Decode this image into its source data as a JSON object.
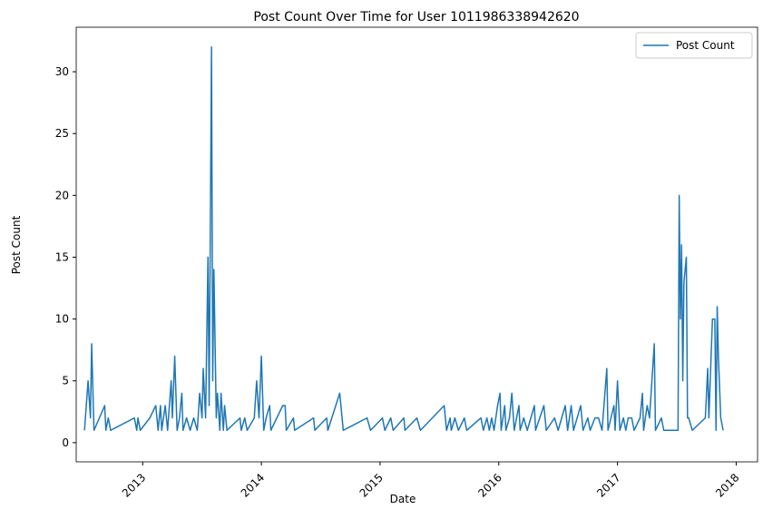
{
  "chart_data": {
    "type": "line",
    "title": "Post Count Over Time for User 1011986338942620",
    "x_label": "Date",
    "y_label": "Post Count",
    "x": [
      2012.51,
      2012.54,
      2012.56,
      2012.57,
      2012.59,
      2012.68,
      2012.69,
      2012.71,
      2012.73,
      2012.93,
      2012.95,
      2012.96,
      2012.98,
      2013.06,
      2013.11,
      2013.13,
      2013.15,
      2013.16,
      2013.19,
      2013.21,
      2013.24,
      2013.25,
      2013.27,
      2013.29,
      2013.31,
      2013.33,
      2013.34,
      2013.37,
      2013.4,
      2013.43,
      2013.46,
      2013.48,
      2013.5,
      2013.51,
      2013.53,
      2013.55,
      2013.56,
      2013.58,
      2013.59,
      2013.6,
      2013.61,
      2013.62,
      2013.63,
      2013.65,
      2013.66,
      2013.68,
      2013.69,
      2013.71,
      2013.82,
      2013.83,
      2013.86,
      2013.88,
      2013.94,
      2013.96,
      2013.98,
      2014.0,
      2014.02,
      2014.04,
      2014.07,
      2014.08,
      2014.18,
      2014.2,
      2014.21,
      2014.27,
      2014.28,
      2014.44,
      2014.45,
      2014.55,
      2014.56,
      2014.66,
      2014.69,
      2014.89,
      2014.92,
      2015.02,
      2015.04,
      2015.09,
      2015.11,
      2015.2,
      2015.21,
      2015.31,
      2015.34,
      2015.54,
      2015.56,
      2015.59,
      2015.6,
      2015.63,
      2015.66,
      2015.71,
      2015.73,
      2015.85,
      2015.87,
      2015.9,
      2015.92,
      2015.94,
      2015.96,
      2015.99,
      2016.01,
      2016.02,
      2016.05,
      2016.06,
      2016.09,
      2016.11,
      2016.13,
      2016.17,
      2016.18,
      2016.21,
      2016.24,
      2016.3,
      2016.31,
      2016.38,
      2016.4,
      2016.47,
      2016.5,
      2016.53,
      2016.56,
      2016.58,
      2016.61,
      2016.63,
      2016.69,
      2016.71,
      2016.75,
      2016.77,
      2016.81,
      2016.84,
      2016.87,
      2016.91,
      2016.92,
      2016.97,
      2016.98,
      2017.0,
      2017.02,
      2017.05,
      2017.07,
      2017.09,
      2017.12,
      2017.14,
      2017.19,
      2017.21,
      2017.22,
      2017.25,
      2017.27,
      2017.31,
      2017.32,
      2017.37,
      2017.39,
      2017.51,
      2017.52,
      2017.53,
      2017.54,
      2017.55,
      2017.56,
      2017.58,
      2017.59,
      2017.6,
      2017.63,
      2017.74,
      2017.76,
      2017.77,
      2017.8,
      2017.82,
      2017.83,
      2017.84,
      2017.85,
      2017.87,
      2017.89
    ],
    "series": [
      {
        "name": "Post Count",
        "color": "#1f77b4",
        "values": [
          1,
          5,
          2,
          8,
          1,
          3,
          1,
          2,
          1,
          2,
          1,
          2,
          1,
          2,
          3,
          1,
          3,
          1,
          3,
          1,
          5,
          2,
          7,
          1,
          2,
          4,
          1,
          2,
          1,
          2,
          1,
          4,
          2,
          6,
          2,
          15,
          3,
          32,
          5,
          14,
          8,
          2,
          4,
          1,
          4,
          1,
          3,
          1,
          2,
          1,
          2,
          1,
          2,
          5,
          2,
          7,
          1,
          2,
          3,
          1,
          3,
          3,
          1,
          2,
          1,
          2,
          1,
          2,
          1,
          4,
          1,
          2,
          1,
          2,
          1,
          2,
          1,
          2,
          1,
          2,
          1,
          3,
          1,
          2,
          1,
          2,
          1,
          2,
          1,
          2,
          1,
          2,
          1,
          2,
          1,
          3,
          4,
          1,
          3,
          1,
          2,
          4,
          1,
          3,
          1,
          2,
          1,
          3,
          1,
          3,
          1,
          2,
          1,
          2,
          3,
          1,
          3,
          1,
          3,
          1,
          2,
          1,
          2,
          2,
          1,
          6,
          1,
          3,
          1,
          5,
          1,
          2,
          1,
          2,
          2,
          1,
          2,
          4,
          1,
          3,
          2,
          8,
          1,
          2,
          1,
          1,
          20,
          10,
          16,
          5,
          13,
          15,
          2,
          2,
          1,
          2,
          6,
          2,
          10,
          10,
          1,
          11,
          7,
          2,
          1
        ]
      }
    ],
    "xlim": [
      2012.44,
      2018.18
    ],
    "xticks": [
      2013,
      2014,
      2015,
      2016,
      2017,
      2018
    ],
    "ylim": [
      -1.55,
      33.6
    ],
    "yticks": [
      0,
      5,
      10,
      15,
      20,
      25,
      30
    ],
    "legend": "upper right"
  }
}
